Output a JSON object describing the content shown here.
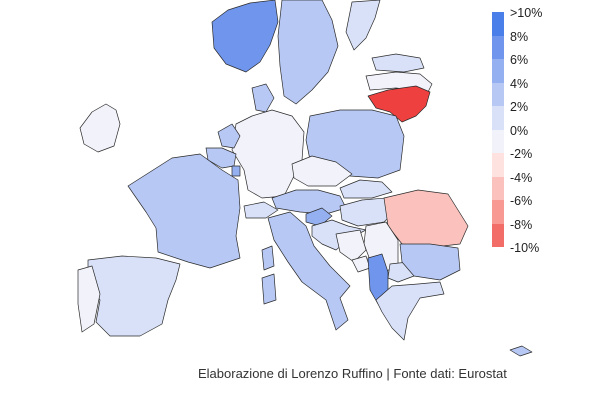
{
  "legend": {
    "labels": [
      ">10%",
      "8%",
      "6%",
      "4%",
      "2%",
      "0%",
      "-2%",
      "-4%",
      "-6%",
      "-8%",
      "-10%"
    ],
    "colors": [
      "#4a7ee9",
      "#6f95ec",
      "#95b0f1",
      "#b7c8f4",
      "#d8e1f8",
      "#f2f2fb",
      "#fde2e0",
      "#fbc2bd",
      "#f89a93",
      "#f36d68",
      "#ef4040"
    ]
  },
  "credit": "Elaborazione di Lorenzo Ruffino | Fonte dati: Eurostat",
  "countries": [
    {
      "name": "Norway",
      "class": 8
    },
    {
      "name": "Sweden",
      "class": 4
    },
    {
      "name": "Finland",
      "class": 2
    },
    {
      "name": "Latvia",
      "class": 0
    },
    {
      "name": "Lithuania",
      "class": -10
    },
    {
      "name": "Estonia",
      "class": 2
    },
    {
      "name": "Ireland",
      "class": 0
    },
    {
      "name": "Denmark",
      "class": 4
    },
    {
      "name": "Germany",
      "class": 0
    },
    {
      "name": "Poland",
      "class": 4
    },
    {
      "name": "Netherlands",
      "class": 4
    },
    {
      "name": "Belgium",
      "class": 4
    },
    {
      "name": "Luxembourg",
      "class": 6
    },
    {
      "name": "France",
      "class": 4
    },
    {
      "name": "Czechia",
      "class": 0
    },
    {
      "name": "Slovakia",
      "class": 2
    },
    {
      "name": "Austria",
      "class": 4
    },
    {
      "name": "Hungary",
      "class": 2
    },
    {
      "name": "Slovenia",
      "class": 6
    },
    {
      "name": "Croatia",
      "class": 2
    },
    {
      "name": "Switzerland",
      "class": 2
    },
    {
      "name": "Romania",
      "class": -4
    },
    {
      "name": "Serbia",
      "class": 0
    },
    {
      "name": "Bosnia",
      "class": 0
    },
    {
      "name": "Montenegro",
      "class": 0
    },
    {
      "name": "Albania",
      "class": 8
    },
    {
      "name": "North Macedonia",
      "class": 2
    },
    {
      "name": "Bulgaria",
      "class": 4
    },
    {
      "name": "Greece",
      "class": 2
    },
    {
      "name": "Italy",
      "class": 4
    },
    {
      "name": "Sardinia",
      "class": 4
    },
    {
      "name": "Corsica",
      "class": 4
    },
    {
      "name": "Spain",
      "class": 2
    },
    {
      "name": "Portugal",
      "class": 0
    },
    {
      "name": "Cyprus",
      "class": 4
    }
  ]
}
